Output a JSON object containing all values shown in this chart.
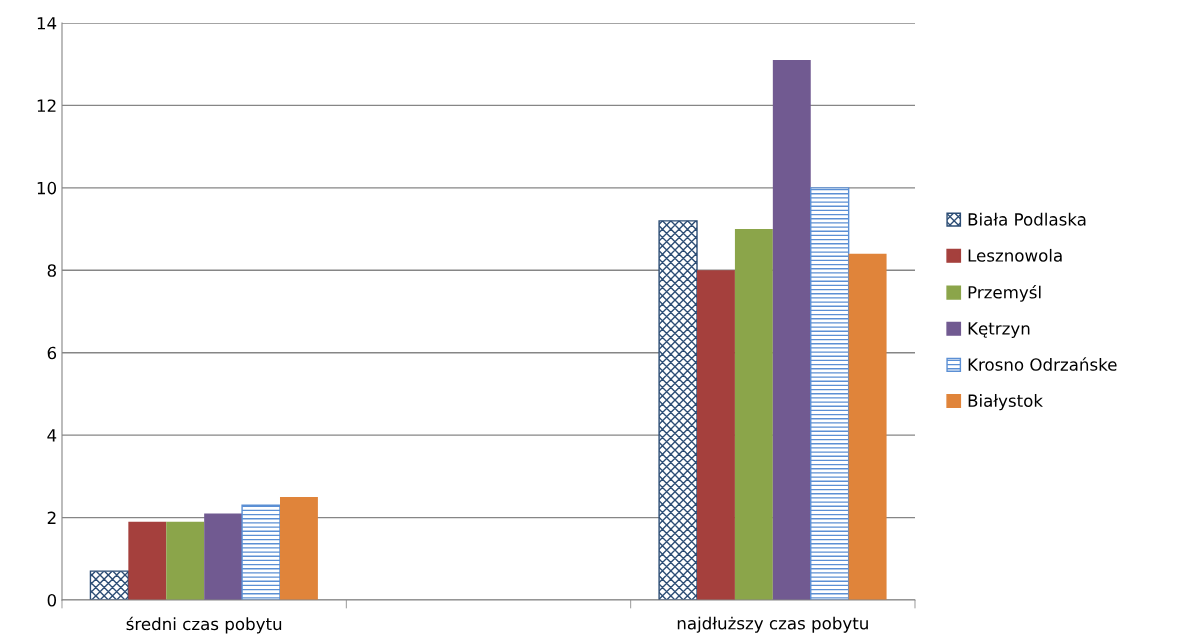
{
  "chart_data": {
    "type": "bar",
    "categories": [
      "średni czas pobytu",
      null,
      "najdłuższy czas pobytu"
    ],
    "series": [
      {
        "name": "Biała Podlaska",
        "color": "#2c4d75",
        "values": [
          0.7,
          null,
          9.2
        ]
      },
      {
        "name": "Lesznowola",
        "color": "#a5403d",
        "values": [
          1.9,
          null,
          8.0
        ]
      },
      {
        "name": "Przemyśl",
        "color": "#8ba54a",
        "values": [
          1.9,
          null,
          9.0
        ]
      },
      {
        "name": "Kętrzyn",
        "color": "#715a91",
        "values": [
          2.1,
          null,
          13.1
        ]
      },
      {
        "name": "Krosno Odrzańske",
        "color": "#5b8fd4",
        "values": [
          2.3,
          null,
          10.0
        ]
      },
      {
        "name": "Białystok",
        "color": "#e0843a",
        "values": [
          2.5,
          null,
          8.4
        ]
      }
    ],
    "ylim": [
      0,
      14
    ],
    "yticks": [
      0,
      2,
      4,
      6,
      8,
      10,
      12,
      14
    ],
    "grid": "y",
    "legend": "right"
  }
}
